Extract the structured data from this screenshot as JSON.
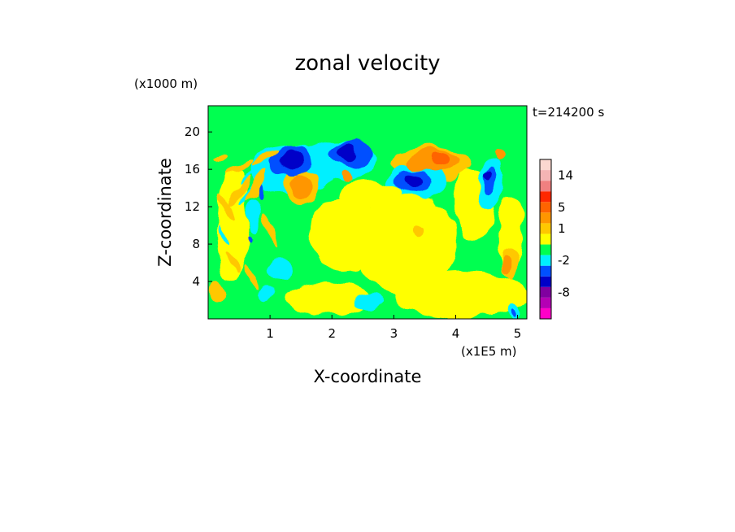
{
  "chart_data": {
    "type": "heatmap",
    "title": "zonal velocity",
    "time_label": "t=214200 s",
    "xlabel": "X-coordinate",
    "ylabel": "Z-coordinate",
    "x_unit": "(x1E5 m)",
    "y_unit": "(x1000 m)",
    "xlim": [
      0,
      5.15
    ],
    "ylim": [
      0,
      22.8
    ],
    "x_ticks": [
      1,
      2,
      3,
      4,
      5
    ],
    "y_ticks": [
      4,
      8,
      12,
      16,
      20
    ],
    "colorbar": {
      "levels": [
        {
          "color": "#ff00c8"
        },
        {
          "color": "#b400b4"
        },
        {
          "color": "#8000a0"
        },
        {
          "color": "#0000c8"
        },
        {
          "color": "#0050ff"
        },
        {
          "color": "#00f0ff"
        },
        {
          "color": "#00ff50"
        },
        {
          "color": "#ffff00"
        },
        {
          "color": "#ffc800"
        },
        {
          "color": "#ff9600"
        },
        {
          "color": "#ff6400"
        },
        {
          "color": "#ff2800"
        },
        {
          "color": "#f08080"
        },
        {
          "color": "#f4b4b4"
        },
        {
          "color": "#fbd8d0"
        }
      ],
      "tick_labels": [
        {
          "text": "14",
          "after_level": 13
        },
        {
          "text": "5",
          "after_level": 10
        },
        {
          "text": "1",
          "after_level": 8
        },
        {
          "text": "-2",
          "after_level": 5
        },
        {
          "text": "-8",
          "after_level": 2
        }
      ]
    },
    "blobs": [
      {
        "x": 1.35,
        "z": 16.9,
        "rx": 0.2,
        "rz": 1.1,
        "level": 3
      },
      {
        "x": 1.35,
        "z": 16.9,
        "rx": 0.32,
        "rz": 1.6,
        "level": 4
      },
      {
        "x": 2.25,
        "z": 17.7,
        "rx": 0.17,
        "rz": 0.9,
        "level": 3
      },
      {
        "x": 2.3,
        "z": 17.6,
        "rx": 0.35,
        "rz": 1.4,
        "level": 4
      },
      {
        "x": 1.35,
        "z": 15.9,
        "rx": 0.7,
        "rz": 2.6,
        "level": 5
      },
      {
        "x": 2.1,
        "z": 16.9,
        "rx": 0.6,
        "rz": 2.2,
        "level": 5
      },
      {
        "x": 3.3,
        "z": 14.8,
        "rx": 0.16,
        "rz": 0.8,
        "level": 3
      },
      {
        "x": 3.3,
        "z": 14.7,
        "rx": 0.3,
        "rz": 1.3,
        "level": 4
      },
      {
        "x": 3.4,
        "z": 14.8,
        "rx": 0.5,
        "rz": 1.9,
        "level": 5
      },
      {
        "x": 3.75,
        "z": 17.1,
        "rx": 0.18,
        "rz": 0.7,
        "level": 10
      },
      {
        "x": 3.65,
        "z": 16.9,
        "rx": 0.4,
        "rz": 1.2,
        "level": 9
      },
      {
        "x": 3.6,
        "z": 16.6,
        "rx": 0.65,
        "rz": 1.8,
        "level": 8
      },
      {
        "x": 1.5,
        "z": 14.2,
        "rx": 0.18,
        "rz": 1.2,
        "level": 9
      },
      {
        "x": 1.5,
        "z": 14.2,
        "rx": 0.3,
        "rz": 1.9,
        "level": 8
      },
      {
        "x": 4.5,
        "z": 15.4,
        "rx": 0.06,
        "rz": 0.6,
        "level": 3
      },
      {
        "x": 4.55,
        "z": 14.8,
        "rx": 0.12,
        "rz": 1.6,
        "level": 4
      },
      {
        "x": 4.58,
        "z": 14.3,
        "rx": 0.22,
        "rz": 2.7,
        "level": 5
      },
      {
        "x": 4.7,
        "z": 17.5,
        "rx": 0.08,
        "rz": 0.7,
        "level": 9
      },
      {
        "x": 2.25,
        "z": 15.2,
        "rx": 0.12,
        "rz": 0.5,
        "level": 9
      },
      {
        "x": 2.2,
        "z": 9.0,
        "rx": 0.6,
        "rz": 4.0,
        "level": 7
      },
      {
        "x": 3.2,
        "z": 8.0,
        "rx": 0.8,
        "rz": 5.5,
        "level": 7
      },
      {
        "x": 4.1,
        "z": 2.6,
        "rx": 1.1,
        "rz": 2.4,
        "level": 7
      },
      {
        "x": 1.9,
        "z": 2.2,
        "rx": 0.7,
        "rz": 1.8,
        "level": 7
      },
      {
        "x": 2.6,
        "z": 13.3,
        "rx": 0.5,
        "rz": 1.5,
        "level": 7
      },
      {
        "x": 0.4,
        "z": 10.0,
        "rx": 0.25,
        "rz": 6.0,
        "level": 7
      },
      {
        "x": 4.3,
        "z": 12.3,
        "rx": 0.35,
        "rz": 3.8,
        "level": 7
      },
      {
        "x": 4.9,
        "z": 9.0,
        "rx": 0.2,
        "rz": 4.0,
        "level": 7
      },
      {
        "x": 1.15,
        "z": 5.5,
        "rx": 0.2,
        "rz": 1.2,
        "level": 5
      },
      {
        "x": 0.95,
        "z": 3.0,
        "rx": 0.12,
        "rz": 0.8,
        "level": 5
      },
      {
        "x": 2.6,
        "z": 1.8,
        "rx": 0.25,
        "rz": 0.8,
        "level": 5
      },
      {
        "x": 4.95,
        "z": 0.9,
        "rx": 0.1,
        "rz": 0.8,
        "level": 5
      },
      {
        "x": 4.95,
        "z": 0.7,
        "rx": 0.04,
        "rz": 0.4,
        "level": 4
      },
      {
        "x": 4.9,
        "z": 6.0,
        "rx": 0.12,
        "rz": 1.8,
        "level": 8
      },
      {
        "x": 4.85,
        "z": 5.8,
        "rx": 0.06,
        "rz": 0.9,
        "level": 9
      },
      {
        "x": 0.15,
        "z": 3.0,
        "rx": 0.12,
        "rz": 1.2,
        "level": 8
      },
      {
        "x": 3.4,
        "z": 9.4,
        "rx": 0.09,
        "rz": 0.5,
        "level": 8
      },
      {
        "x": 0.85,
        "z": 13.8,
        "rx": 0.05,
        "rz": 0.7,
        "level": 4
      },
      {
        "x": 0.65,
        "z": 8.2,
        "rx": 0.03,
        "rz": 0.5,
        "level": 4
      },
      {
        "x": 0.75,
        "z": 11.0,
        "rx": 0.1,
        "rz": 2.0,
        "level": 5
      }
    ],
    "streaks": [
      {
        "x": 0.5,
        "z": 13.5,
        "level": 8,
        "angle": -55,
        "len": 0.55,
        "w": 0.06
      },
      {
        "x": 0.65,
        "z": 13.5,
        "level": 5,
        "angle": -55,
        "len": 0.45,
        "w": 0.04
      },
      {
        "x": 0.8,
        "z": 14.5,
        "level": 8,
        "angle": -55,
        "len": 0.6,
        "w": 0.07
      },
      {
        "x": 0.3,
        "z": 12.0,
        "level": 8,
        "angle": 60,
        "len": 0.5,
        "w": 0.05
      },
      {
        "x": 0.5,
        "z": 16.2,
        "level": 8,
        "angle": -30,
        "len": 0.5,
        "w": 0.05
      },
      {
        "x": 0.9,
        "z": 17.2,
        "level": 8,
        "angle": -30,
        "len": 0.5,
        "w": 0.05
      },
      {
        "x": 0.2,
        "z": 17.5,
        "level": 8,
        "angle": -20,
        "len": 0.3,
        "w": 0.05
      },
      {
        "x": 0.4,
        "z": 6.0,
        "level": 8,
        "angle": 60,
        "len": 0.4,
        "w": 0.05
      },
      {
        "x": 0.7,
        "z": 4.5,
        "level": 8,
        "angle": 60,
        "len": 0.4,
        "w": 0.05
      },
      {
        "x": 1.0,
        "z": 9.5,
        "level": 8,
        "angle": 70,
        "len": 0.6,
        "w": 0.05
      },
      {
        "x": 0.25,
        "z": 9.0,
        "level": 5,
        "angle": 60,
        "len": 0.3,
        "w": 0.03
      },
      {
        "x": 0.6,
        "z": 15.0,
        "level": 5,
        "angle": -45,
        "len": 0.3,
        "w": 0.03
      }
    ]
  }
}
